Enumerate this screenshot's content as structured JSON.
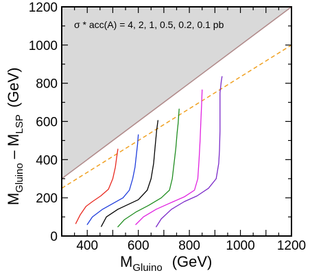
{
  "chart_data": {
    "type": "line",
    "xlabel": {
      "main": "M",
      "sub": "Gluino",
      "unit": "(GeV)"
    },
    "ylabel": {
      "main1": "M",
      "sub1": "Gluino",
      "dash": "– M",
      "sub2": "LSP",
      "unit": "(GeV)"
    },
    "annotation": "σ * acc(A) = 4,  2,  1,  0.5,  0.2,  0.1 pb",
    "xlim": [
      300,
      1200
    ],
    "ylim": [
      0,
      1200
    ],
    "xticks": [
      400,
      600,
      800,
      1000,
      1200
    ],
    "yticks": [
      0,
      200,
      400,
      600,
      800,
      1000,
      1200
    ],
    "excluded_region": {
      "boundary": [
        [
          300,
          300
        ],
        [
          1200,
          1200
        ]
      ],
      "color": "#d9d9d9",
      "edge_color": "#b08a8a"
    },
    "reference_line": {
      "points": [
        [
          300,
          250
        ],
        [
          1200,
          1000
        ]
      ],
      "color": "#f0a020",
      "style": "dashed"
    },
    "series": [
      {
        "color": "#e8281e",
        "points": [
          [
            355,
            65
          ],
          [
            372,
            110
          ],
          [
            395,
            155
          ],
          [
            420,
            180
          ],
          [
            453,
            210
          ],
          [
            483,
            245
          ],
          [
            500,
            300
          ],
          [
            510,
            360
          ],
          [
            515,
            410
          ],
          [
            520,
            455
          ]
        ]
      },
      {
        "color": "#1e3cdc",
        "points": [
          [
            400,
            60
          ],
          [
            420,
            100
          ],
          [
            460,
            140
          ],
          [
            500,
            170
          ],
          [
            540,
            200
          ],
          [
            565,
            240
          ],
          [
            578,
            300
          ],
          [
            587,
            360
          ],
          [
            592,
            420
          ],
          [
            597,
            480
          ],
          [
            600,
            530
          ]
        ]
      },
      {
        "color": "#000000",
        "points": [
          [
            455,
            50
          ],
          [
            475,
            100
          ],
          [
            520,
            140
          ],
          [
            560,
            165
          ],
          [
            600,
            190
          ],
          [
            635,
            240
          ],
          [
            650,
            300
          ],
          [
            660,
            380
          ],
          [
            666,
            470
          ],
          [
            672,
            555
          ],
          [
            677,
            605
          ]
        ]
      },
      {
        "color": "#1e8c1e",
        "points": [
          [
            520,
            48
          ],
          [
            545,
            85
          ],
          [
            590,
            125
          ],
          [
            640,
            160
          ],
          [
            690,
            200
          ],
          [
            722,
            240
          ],
          [
            733,
            300
          ],
          [
            740,
            380
          ],
          [
            747,
            460
          ],
          [
            752,
            540
          ],
          [
            756,
            590
          ],
          [
            760,
            665
          ]
        ]
      },
      {
        "color": "#e020e0",
        "points": [
          [
            590,
            60
          ],
          [
            620,
            100
          ],
          [
            670,
            140
          ],
          [
            720,
            170
          ],
          [
            780,
            205
          ],
          [
            820,
            240
          ],
          [
            833,
            300
          ],
          [
            838,
            400
          ],
          [
            842,
            500
          ],
          [
            845,
            600
          ],
          [
            848,
            690
          ],
          [
            850,
            765
          ]
        ]
      },
      {
        "color": "#7a28c8",
        "points": [
          [
            670,
            48
          ],
          [
            690,
            90
          ],
          [
            730,
            140
          ],
          [
            780,
            180
          ],
          [
            830,
            210
          ],
          [
            875,
            250
          ],
          [
            905,
            300
          ],
          [
            915,
            380
          ],
          [
            918,
            450
          ],
          [
            920,
            550
          ],
          [
            920,
            650
          ],
          [
            920,
            750
          ],
          [
            925,
            810
          ],
          [
            928,
            835
          ]
        ]
      }
    ]
  }
}
